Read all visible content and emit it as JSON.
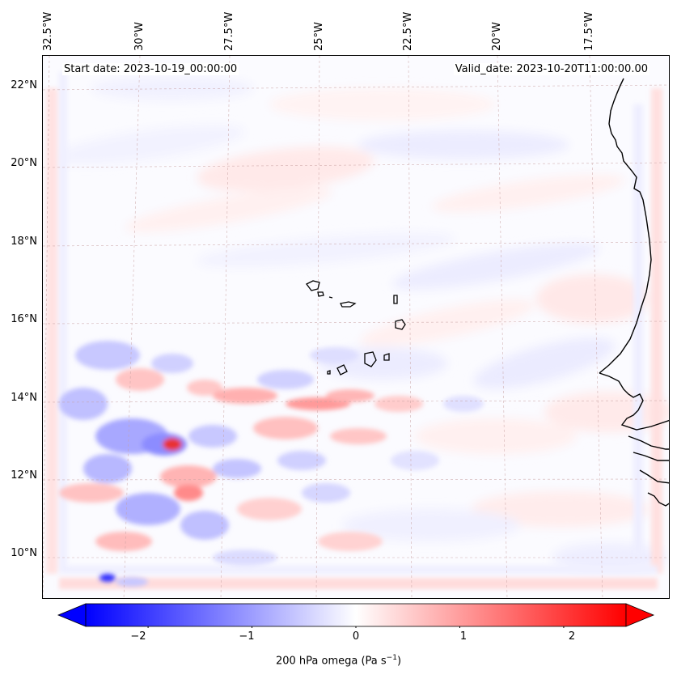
{
  "header": {
    "start_date": "Start date: 2023-10-19_00:00:00",
    "valid_date": "Valid_date: 2023-10-20T11:00:00.00"
  },
  "axes": {
    "longitude_labels": [
      "32.5°W",
      "30°W",
      "27.5°W",
      "25°W",
      "22.5°W",
      "20°W",
      "17.5°W"
    ],
    "latitude_labels": [
      "22°N",
      "20°N",
      "18°N",
      "16°N",
      "14°N",
      "12°N",
      "10°N"
    ]
  },
  "colorbar": {
    "ticks": [
      "−2",
      "−1",
      "0",
      "1",
      "2"
    ],
    "label_text": "200 hPa omega (Pa s",
    "label_exp": "−1",
    "label_close": ")",
    "range": [
      -2.6,
      2.6
    ],
    "low_color": "#0000ff",
    "high_color": "#ff0000",
    "mid_color": "#ffffff",
    "extend": "both"
  },
  "map": {
    "field": "200 hPa omega",
    "units": "Pa s-1",
    "extent_lon": [
      -33,
      -15.5
    ],
    "extent_lat": [
      8.8,
      22.8
    ],
    "coastline_color": "#000000",
    "gridline_color": "#c8a0a0",
    "region_features": [
      "Cape Verde islands",
      "West African coast"
    ]
  }
}
